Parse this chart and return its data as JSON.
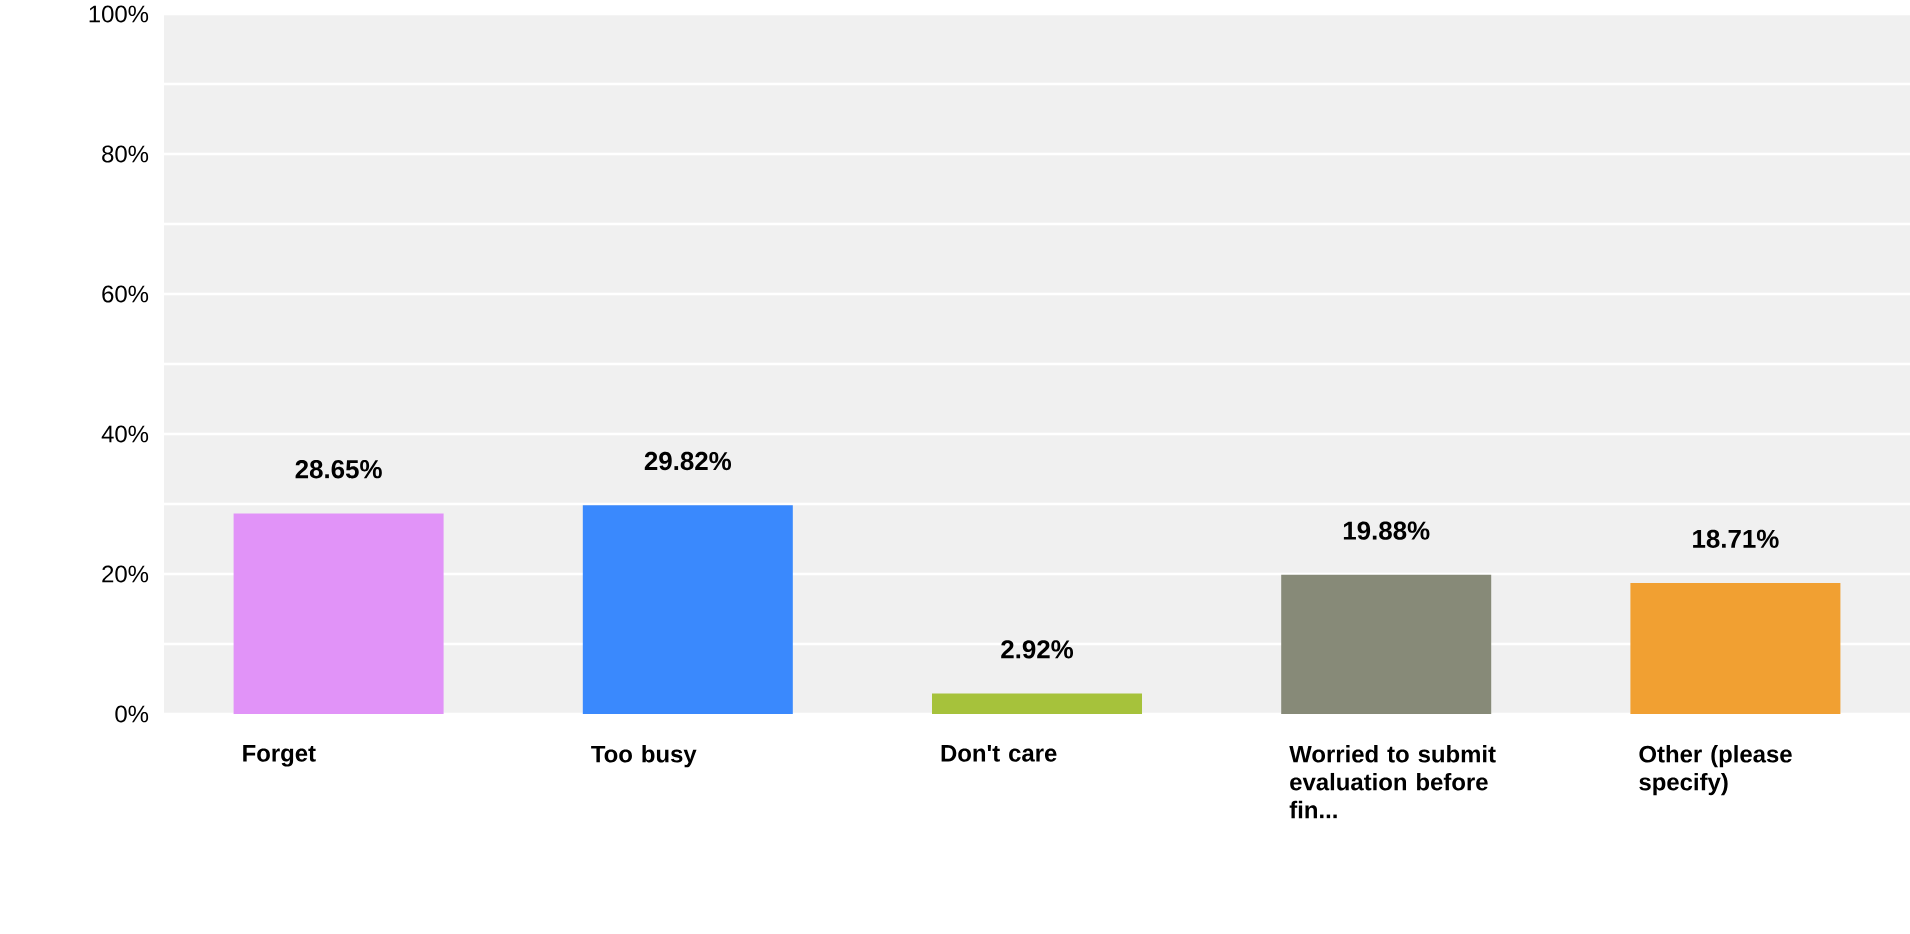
{
  "chart_data": {
    "type": "bar",
    "categories": [
      "Forget",
      "Too busy",
      "Don't care",
      "Worried to submit evaluation before fin...",
      "Other (please specify)"
    ],
    "values": [
      28.65,
      29.82,
      2.92,
      19.88,
      18.71
    ],
    "colors": [
      "#e193f8",
      "#3a89fd",
      "#a6c23b",
      "#878a78",
      "#f1a032"
    ],
    "value_labels": [
      "28.65%",
      "29.82%",
      "2.92%",
      "19.88%",
      "18.71%"
    ],
    "ylim": [
      0,
      100
    ],
    "yticks": [
      {
        "value": 0,
        "label": "0%"
      },
      {
        "value": 10,
        "label": null
      },
      {
        "value": 20,
        "label": "20%"
      },
      {
        "value": 30,
        "label": null
      },
      {
        "value": 40,
        "label": "40%"
      },
      {
        "value": 50,
        "label": null
      },
      {
        "value": 60,
        "label": "60%"
      },
      {
        "value": 70,
        "label": null
      },
      {
        "value": 80,
        "label": "80%"
      },
      {
        "value": 90,
        "label": null
      },
      {
        "value": 100,
        "label": "100%"
      }
    ],
    "grid": "y"
  }
}
